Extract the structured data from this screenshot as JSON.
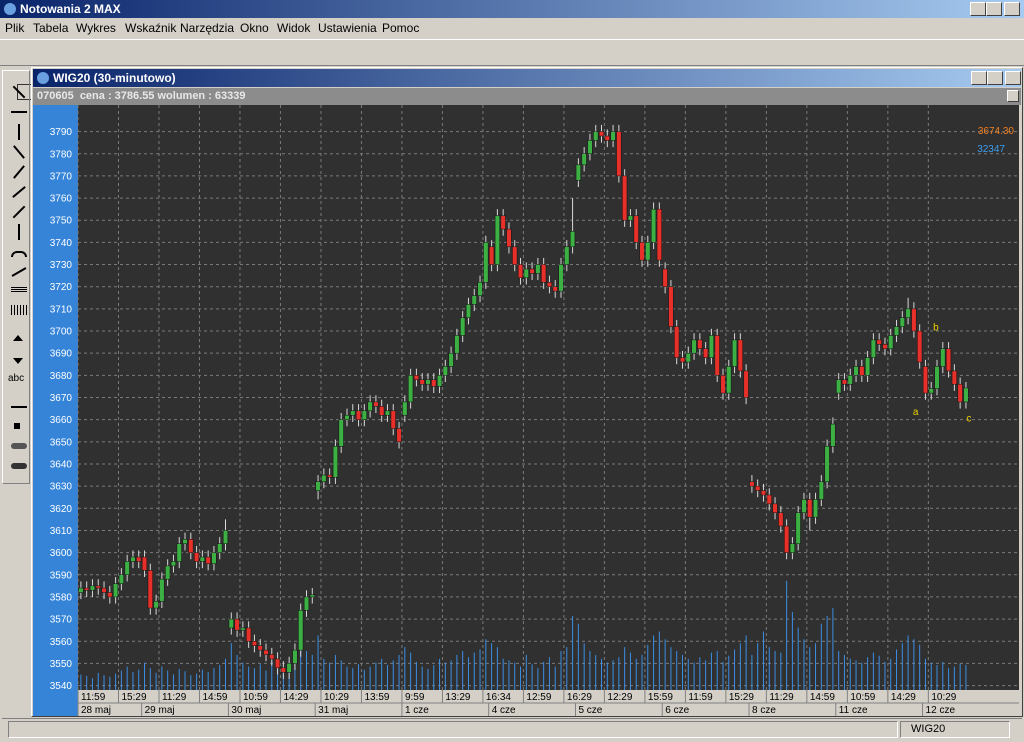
{
  "window": {
    "title": "Notowania 2 MAX"
  },
  "menu": [
    "Plik",
    "Tabela",
    "Wykres",
    "Wskaźnik",
    "Narzędzia",
    "Okno",
    "Widok",
    "Ustawienia",
    "Pomoc"
  ],
  "toolbox": {
    "text_tool": "abc"
  },
  "chart_window": {
    "title": "WIG20 (30-minutowo)",
    "info": "070605  cena : 3786.55 wolumen : 63339"
  },
  "chart_data": {
    "type": "candlestick",
    "open": [
      3582,
      3584,
      3583,
      3585,
      3584,
      3582,
      3580,
      3586,
      3590,
      3596,
      3598,
      3598,
      3592,
      3575,
      3578,
      3588,
      3594,
      3596,
      3604,
      3606,
      3600,
      3596,
      3598,
      3595,
      3600,
      3604,
      3566,
      3570,
      3565,
      3566,
      3560,
      3558,
      3556,
      3554,
      3552,
      3548,
      3546,
      3550,
      3556,
      3574,
      3580,
      3628,
      3632,
      3635,
      3634,
      3648,
      3660,
      3662,
      3664,
      3660,
      3664,
      3668,
      3666,
      3662,
      3664,
      3656,
      3662,
      3668,
      3680,
      3678,
      3676,
      3678,
      3675,
      3680,
      3684,
      3690,
      3698,
      3706,
      3712,
      3716,
      3722,
      3738,
      3730,
      3752,
      3746,
      3738,
      3730,
      3724,
      3728,
      3726,
      3730,
      3722,
      3720,
      3718,
      3730,
      3738,
      3768,
      3775,
      3780,
      3786,
      3790,
      3788,
      3786,
      3790,
      3770,
      3750,
      3752,
      3740,
      3732,
      3740,
      3755,
      3728,
      3720,
      3702,
      3688,
      3686,
      3690,
      3696,
      3692,
      3688,
      3698,
      3680,
      3672,
      3684,
      3696,
      3682,
      3632,
      3630,
      3628,
      3626,
      3622,
      3618,
      3612,
      3600,
      3604,
      3618,
      3624,
      3616,
      3624,
      3632,
      3648,
      3672,
      3678,
      3676,
      3680,
      3684,
      3680,
      3688,
      3696,
      3694,
      3692,
      3698,
      3702,
      3706,
      3710,
      3700,
      3684,
      3672,
      3674,
      3684,
      3692,
      3682,
      3676,
      3668
    ],
    "high": [
      3587,
      3587,
      3588,
      3588,
      3587,
      3585,
      3589,
      3593,
      3599,
      3601,
      3601,
      3601,
      3595,
      3581,
      3591,
      3597,
      3599,
      3607,
      3609,
      3609,
      3603,
      3601,
      3601,
      3603,
      3607,
      3615,
      3573,
      3573,
      3569,
      3569,
      3563,
      3561,
      3559,
      3557,
      3555,
      3551,
      3553,
      3559,
      3577,
      3583,
      3584,
      3635,
      3638,
      3638,
      3651,
      3663,
      3665,
      3667,
      3667,
      3667,
      3671,
      3671,
      3669,
      3667,
      3667,
      3659,
      3671,
      3683,
      3683,
      3681,
      3681,
      3681,
      3683,
      3687,
      3693,
      3701,
      3709,
      3715,
      3719,
      3725,
      3743,
      3741,
      3755,
      3755,
      3749,
      3741,
      3733,
      3731,
      3731,
      3733,
      3733,
      3725,
      3723,
      3733,
      3741,
      3760,
      3778,
      3783,
      3789,
      3793,
      3793,
      3791,
      3793,
      3793,
      3773,
      3755,
      3755,
      3743,
      3743,
      3758,
      3758,
      3731,
      3723,
      3705,
      3691,
      3693,
      3699,
      3699,
      3695,
      3701,
      3701,
      3683,
      3687,
      3699,
      3699,
      3685,
      3635,
      3633,
      3631,
      3629,
      3625,
      3621,
      3615,
      3607,
      3621,
      3627,
      3627,
      3627,
      3635,
      3651,
      3661,
      3681,
      3681,
      3683,
      3687,
      3687,
      3691,
      3699,
      3699,
      3697,
      3701,
      3705,
      3709,
      3715,
      3713,
      3703,
      3687,
      3677,
      3687,
      3695,
      3695,
      3685,
      3679,
      3677
    ],
    "low": [
      3579,
      3580,
      3580,
      3581,
      3579,
      3577,
      3577,
      3583,
      3587,
      3593,
      3593,
      3589,
      3572,
      3572,
      3575,
      3585,
      3591,
      3593,
      3601,
      3597,
      3593,
      3593,
      3592,
      3592,
      3597,
      3601,
      3563,
      3562,
      3562,
      3557,
      3555,
      3553,
      3551,
      3549,
      3545,
      3543,
      3543,
      3547,
      3553,
      3571,
      3577,
      3624,
      3629,
      3631,
      3631,
      3645,
      3657,
      3659,
      3657,
      3657,
      3661,
      3663,
      3659,
      3659,
      3653,
      3647,
      3659,
      3665,
      3675,
      3673,
      3673,
      3672,
      3672,
      3677,
      3681,
      3687,
      3695,
      3703,
      3709,
      3713,
      3719,
      3727,
      3727,
      3743,
      3735,
      3727,
      3721,
      3721,
      3723,
      3723,
      3719,
      3717,
      3715,
      3715,
      3727,
      3735,
      3765,
      3772,
      3777,
      3783,
      3785,
      3783,
      3783,
      3767,
      3747,
      3747,
      3737,
      3729,
      3729,
      3737,
      3729,
      3717,
      3699,
      3685,
      3683,
      3683,
      3687,
      3689,
      3685,
      3685,
      3677,
      3669,
      3669,
      3681,
      3679,
      3667,
      3627,
      3625,
      3623,
      3619,
      3615,
      3609,
      3597,
      3597,
      3601,
      3615,
      3610,
      3613,
      3621,
      3629,
      3645,
      3669,
      3673,
      3673,
      3677,
      3677,
      3677,
      3685,
      3691,
      3689,
      3689,
      3695,
      3699,
      3703,
      3697,
      3683,
      3669,
      3669,
      3671,
      3681,
      3679,
      3673,
      3665,
      3665
    ],
    "close": [
      3584,
      3583,
      3585,
      3584,
      3582,
      3580,
      3586,
      3590,
      3596,
      3598,
      3596,
      3592,
      3575,
      3578,
      3588,
      3594,
      3596,
      3604,
      3606,
      3600,
      3596,
      3598,
      3595,
      3600,
      3604,
      3610,
      3570,
      3565,
      3566,
      3560,
      3558,
      3556,
      3554,
      3552,
      3548,
      3546,
      3550,
      3556,
      3574,
      3580,
      3581,
      3632,
      3635,
      3634,
      3648,
      3660,
      3662,
      3664,
      3660,
      3664,
      3668,
      3666,
      3662,
      3664,
      3656,
      3650,
      3668,
      3680,
      3678,
      3676,
      3678,
      3675,
      3680,
      3684,
      3690,
      3698,
      3706,
      3712,
      3716,
      3722,
      3740,
      3730,
      3752,
      3746,
      3738,
      3730,
      3724,
      3728,
      3726,
      3730,
      3722,
      3720,
      3718,
      3730,
      3738,
      3745,
      3775,
      3780,
      3786,
      3790,
      3788,
      3786,
      3790,
      3770,
      3750,
      3752,
      3740,
      3732,
      3740,
      3755,
      3732,
      3720,
      3702,
      3688,
      3686,
      3690,
      3696,
      3692,
      3688,
      3698,
      3680,
      3672,
      3684,
      3696,
      3682,
      3670,
      3630,
      3628,
      3626,
      3622,
      3618,
      3612,
      3600,
      3604,
      3618,
      3624,
      3616,
      3624,
      3632,
      3648,
      3658,
      3678,
      3676,
      3680,
      3684,
      3680,
      3688,
      3696,
      3694,
      3692,
      3698,
      3702,
      3706,
      3710,
      3700,
      3686,
      3672,
      3674,
      3684,
      3692,
      3682,
      3676,
      3668,
      3674.3
    ],
    "volume": [
      20000,
      18000,
      15000,
      22000,
      19000,
      17000,
      21000,
      25000,
      30000,
      23000,
      26000,
      35000,
      28000,
      22000,
      30000,
      25000,
      20000,
      27000,
      24000,
      19000,
      21000,
      26000,
      23000,
      28000,
      32000,
      40000,
      60000,
      45000,
      35000,
      30000,
      28000,
      33000,
      25000,
      38000,
      30000,
      27000,
      35000,
      42000,
      55000,
      50000,
      45000,
      70000,
      40000,
      35000,
      45000,
      38000,
      30000,
      28000,
      33000,
      26000,
      30000,
      35000,
      40000,
      32000,
      38000,
      45000,
      55000,
      48000,
      36000,
      30000,
      27000,
      32000,
      40000,
      35000,
      38000,
      45000,
      50000,
      42000,
      48000,
      52000,
      65000,
      60000,
      55000,
      40000,
      38000,
      35000,
      30000,
      45000,
      33000,
      28000,
      36000,
      42000,
      30000,
      50000,
      55000,
      95000,
      85000,
      60000,
      50000,
      45000,
      40000,
      35000,
      38000,
      42000,
      55000,
      48000,
      40000,
      45000,
      58000,
      70000,
      75000,
      65000,
      55000,
      50000,
      45000,
      40000,
      35000,
      42000,
      38000,
      48000,
      50000,
      36000,
      44000,
      52000,
      60000,
      70000,
      45000,
      60000,
      75000,
      55000,
      50000,
      48000,
      140000,
      100000,
      80000,
      65000,
      55000,
      60000,
      85000,
      95000,
      105000,
      50000,
      45000,
      40000,
      38000,
      35000,
      42000,
      48000,
      44000,
      36000,
      40000,
      52000,
      60000,
      70000,
      65000,
      58000,
      40000,
      35000,
      32000,
      36000,
      28000,
      30000,
      34000,
      32347
    ],
    "up_color": "#3cb043",
    "down_color": "#e8302a",
    "volume_color": "#3a8ee6",
    "ylim": [
      3538,
      3802
    ],
    "yticks": [
      3540,
      3550,
      3560,
      3570,
      3580,
      3590,
      3600,
      3610,
      3620,
      3630,
      3640,
      3650,
      3660,
      3670,
      3680,
      3690,
      3700,
      3710,
      3720,
      3730,
      3740,
      3750,
      3760,
      3770,
      3780,
      3790
    ],
    "y2lim": [
      0,
      750000
    ],
    "xlim": [
      0,
      162.5
    ],
    "xticks": [
      {
        "value": 0,
        "label": "11:59"
      },
      {
        "value": 7,
        "label": "15:29"
      },
      {
        "value": 14,
        "label": "11:29"
      },
      {
        "value": 21,
        "label": "14:59"
      },
      {
        "value": 28,
        "label": "10:59"
      },
      {
        "value": 35,
        "label": "14:29"
      },
      {
        "value": 42,
        "label": "10:29"
      },
      {
        "value": 49,
        "label": "13:59"
      },
      {
        "value": 56,
        "label": "9:59"
      },
      {
        "value": 63,
        "label": "13:29"
      },
      {
        "value": 70,
        "label": "16:34"
      },
      {
        "value": 77,
        "label": "12:59"
      },
      {
        "value": 84,
        "label": "16:29"
      },
      {
        "value": 91,
        "label": "12:29"
      },
      {
        "value": 98,
        "label": "15:59"
      },
      {
        "value": 105,
        "label": "11:59"
      },
      {
        "value": 112,
        "label": "15:29"
      },
      {
        "value": 119,
        "label": "11:29"
      },
      {
        "value": 126,
        "label": "14:59"
      },
      {
        "value": 133,
        "label": "10:59"
      },
      {
        "value": 140,
        "label": "14:29"
      },
      {
        "value": 147,
        "label": "10:29"
      }
    ],
    "date_ticks": [
      {
        "value": 0,
        "label": "28 maj"
      },
      {
        "value": 11,
        "label": "29 maj"
      },
      {
        "value": 26,
        "label": "30 maj"
      },
      {
        "value": 41,
        "label": "31 maj"
      },
      {
        "value": 56,
        "label": "1 cze"
      },
      {
        "value": 71,
        "label": "4 cze"
      },
      {
        "value": 86,
        "label": "5 cze"
      },
      {
        "value": 101,
        "label": "6 cze"
      },
      {
        "value": 116,
        "label": "8 cze"
      },
      {
        "value": 131,
        "label": "11 cze"
      },
      {
        "value": 146,
        "label": "12 cze"
      }
    ],
    "grid": true,
    "last_price": {
      "value": 3674.3,
      "label": "3674.30"
    },
    "last_volume": 32347,
    "annotations": [
      {
        "text": "a",
        "x": 144.8,
        "y": 3664
      },
      {
        "text": "b",
        "x": 148.3,
        "y": 3702
      },
      {
        "text": "c",
        "x": 154,
        "y": 3661
      }
    ]
  },
  "status_bar": {
    "symbol": "WIG20"
  }
}
